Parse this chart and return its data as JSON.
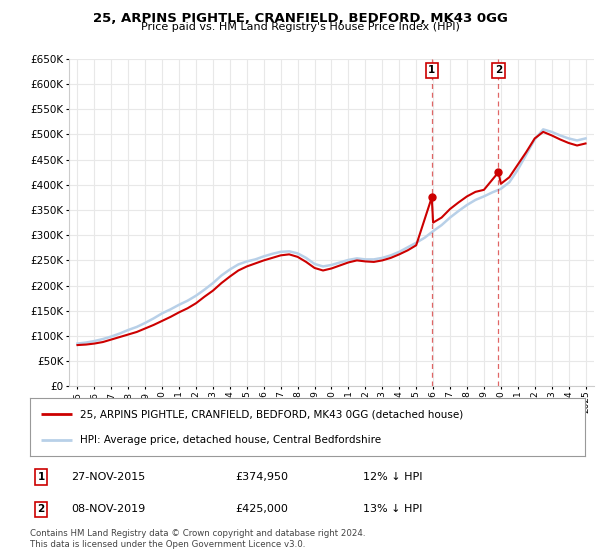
{
  "title": "25, ARPINS PIGHTLE, CRANFIELD, BEDFORD, MK43 0GG",
  "subtitle": "Price paid vs. HM Land Registry's House Price Index (HPI)",
  "legend_line1": "25, ARPINS PIGHTLE, CRANFIELD, BEDFORD, MK43 0GG (detached house)",
  "legend_line2": "HPI: Average price, detached house, Central Bedfordshire",
  "transaction1_date": "27-NOV-2015",
  "transaction1_price": "£374,950",
  "transaction1_hpi": "12% ↓ HPI",
  "transaction1_year": 2015.92,
  "transaction1_value": 374950,
  "transaction2_date": "08-NOV-2019",
  "transaction2_price": "£425,000",
  "transaction2_hpi": "13% ↓ HPI",
  "transaction2_year": 2019.86,
  "transaction2_value": 425000,
  "footer": "Contains HM Land Registry data © Crown copyright and database right 2024.\nThis data is licensed under the Open Government Licence v3.0.",
  "hpi_color": "#b8d0e8",
  "price_color": "#cc0000",
  "background_color": "#ffffff",
  "grid_color": "#e8e8e8",
  "ylim": [
    0,
    650000
  ],
  "xlim": [
    1994.5,
    2025.5
  ],
  "ytick_step": 50000,
  "hpi_years": [
    1995,
    1995.5,
    1996,
    1996.5,
    1997,
    1997.5,
    1998,
    1998.5,
    1999,
    1999.5,
    2000,
    2000.5,
    2001,
    2001.5,
    2002,
    2002.5,
    2003,
    2003.5,
    2004,
    2004.5,
    2005,
    2005.5,
    2006,
    2006.5,
    2007,
    2007.5,
    2008,
    2008.5,
    2009,
    2009.5,
    2010,
    2010.5,
    2011,
    2011.5,
    2012,
    2012.5,
    2013,
    2013.5,
    2014,
    2014.5,
    2015,
    2015.5,
    2016,
    2016.5,
    2017,
    2017.5,
    2018,
    2018.5,
    2019,
    2019.5,
    2020,
    2020.5,
    2021,
    2021.5,
    2022,
    2022.5,
    2023,
    2023.5,
    2024,
    2024.5,
    2025
  ],
  "hpi_values": [
    85000,
    87000,
    90000,
    94000,
    99000,
    105000,
    112000,
    118000,
    126000,
    135000,
    145000,
    153000,
    162000,
    170000,
    180000,
    192000,
    205000,
    220000,
    232000,
    242000,
    248000,
    252000,
    258000,
    263000,
    267000,
    268000,
    264000,
    255000,
    243000,
    238000,
    241000,
    246000,
    251000,
    254000,
    252000,
    252000,
    255000,
    260000,
    267000,
    276000,
    285000,
    295000,
    308000,
    320000,
    335000,
    348000,
    360000,
    370000,
    377000,
    385000,
    392000,
    405000,
    430000,
    460000,
    490000,
    510000,
    505000,
    498000,
    492000,
    488000,
    492000
  ],
  "price_years": [
    1995,
    1995.5,
    1996,
    1996.5,
    1997,
    1997.5,
    1998,
    1998.5,
    1999,
    1999.5,
    2000,
    2000.5,
    2001,
    2001.5,
    2002,
    2002.5,
    2003,
    2003.5,
    2004,
    2004.5,
    2005,
    2005.5,
    2006,
    2006.5,
    2007,
    2007.5,
    2008,
    2008.5,
    2009,
    2009.5,
    2010,
    2010.5,
    2011,
    2011.5,
    2012,
    2012.5,
    2013,
    2013.5,
    2014,
    2014.5,
    2015,
    2015.92,
    2016,
    2016.5,
    2017,
    2017.5,
    2018,
    2018.5,
    2019,
    2019.86,
    2020,
    2020.5,
    2021,
    2021.5,
    2022,
    2022.5,
    2023,
    2023.5,
    2024,
    2024.5,
    2025
  ],
  "price_values": [
    82000,
    83000,
    85000,
    88000,
    93000,
    98000,
    103000,
    108000,
    115000,
    122000,
    130000,
    138000,
    147000,
    155000,
    165000,
    178000,
    190000,
    205000,
    218000,
    230000,
    238000,
    244000,
    250000,
    255000,
    260000,
    262000,
    257000,
    247000,
    235000,
    230000,
    234000,
    240000,
    246000,
    250000,
    248000,
    247000,
    250000,
    255000,
    262000,
    270000,
    280000,
    374950,
    325000,
    335000,
    352000,
    365000,
    377000,
    386000,
    390000,
    425000,
    402000,
    415000,
    440000,
    465000,
    492000,
    505000,
    498000,
    490000,
    483000,
    478000,
    482000
  ]
}
